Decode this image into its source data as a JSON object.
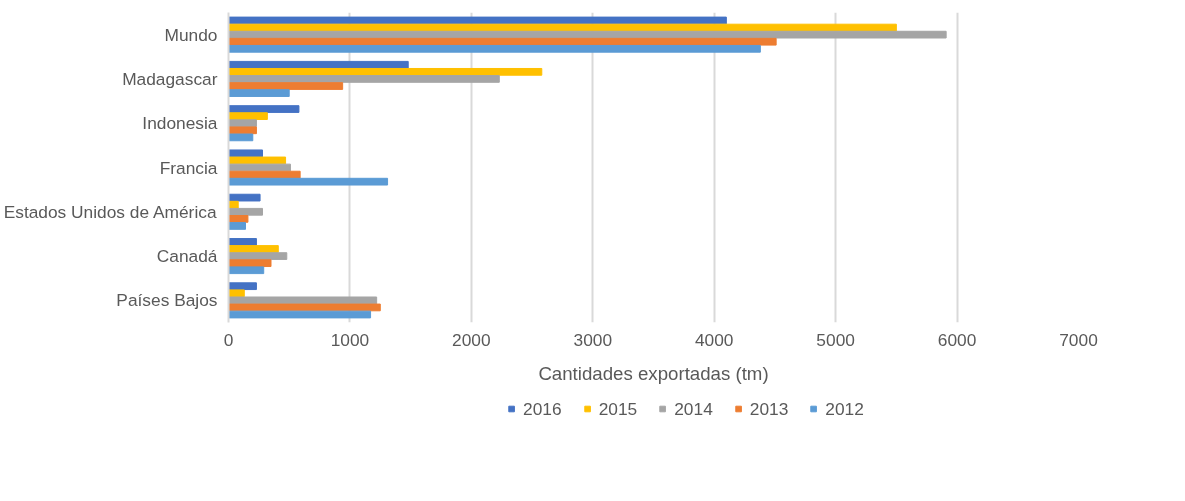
{
  "chart_data": {
    "type": "bar",
    "orientation": "horizontal",
    "xlabel": "Cantidades exportadas (tm)",
    "categories": [
      "Mundo",
      "Madagascar",
      "Indonesia",
      "Francia",
      "Estados Unidos de América",
      "Canadá",
      "Países Bajos"
    ],
    "series": [
      {
        "name": "2016",
        "color": "#4472c4",
        "values": [
          4100,
          1480,
          580,
          280,
          260,
          230,
          230
        ]
      },
      {
        "name": "2015",
        "color": "#ffc000",
        "values": [
          5500,
          2580,
          320,
          470,
          80,
          410,
          130
        ]
      },
      {
        "name": "2014",
        "color": "#a5a5a5",
        "values": [
          5910,
          2230,
          230,
          510,
          280,
          480,
          1220
        ]
      },
      {
        "name": "2013",
        "color": "#ed7d31",
        "values": [
          4510,
          940,
          230,
          590,
          160,
          350,
          1250
        ]
      },
      {
        "name": "2012",
        "color": "#5b9bd5",
        "values": [
          4380,
          500,
          200,
          1310,
          140,
          290,
          1170
        ]
      }
    ],
    "xlim": [
      0,
      7000
    ],
    "xticks": [
      0,
      1000,
      2000,
      3000,
      4000,
      5000,
      6000,
      7000
    ],
    "grid": "x",
    "legend": "bottom"
  }
}
